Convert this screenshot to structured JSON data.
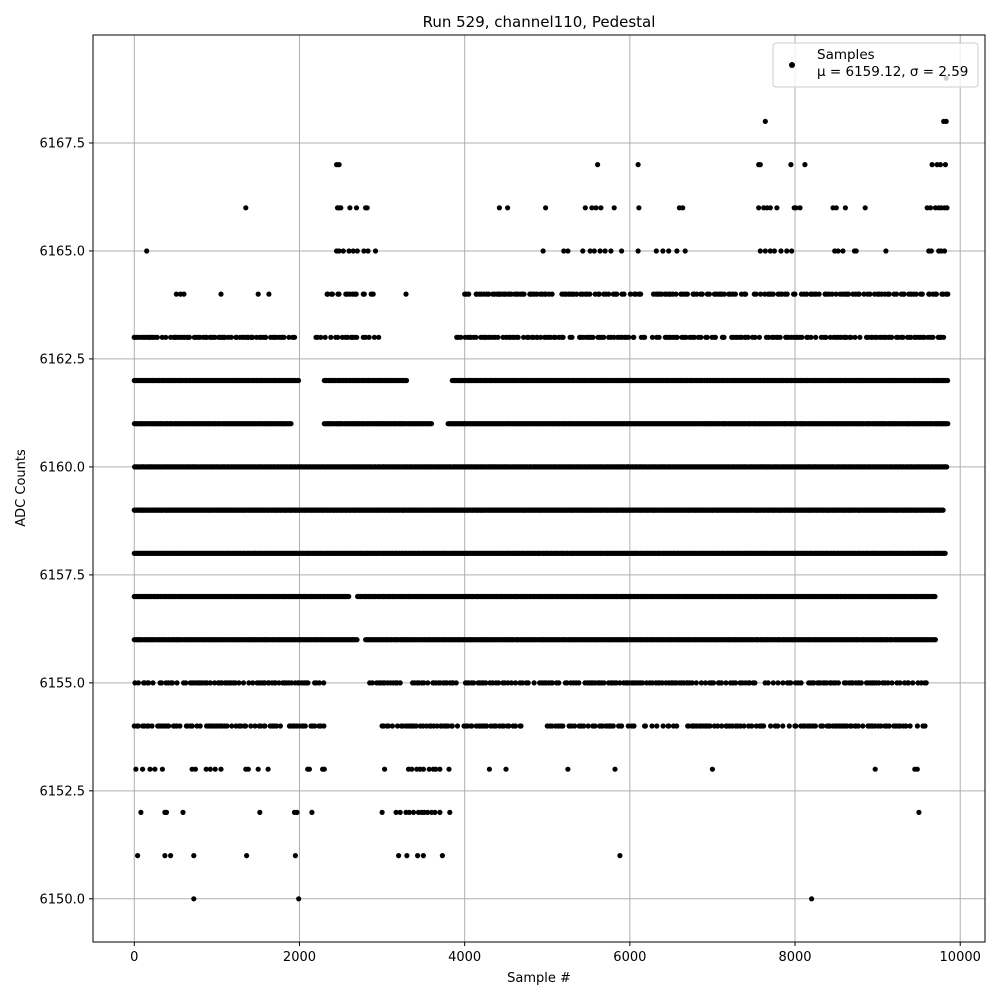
{
  "chart_data": {
    "type": "scatter",
    "title": "Run 529, channel110, Pedestal",
    "xlabel": "Sample #",
    "ylabel": "ADC Counts",
    "xlim": [
      -500,
      10300
    ],
    "ylim": [
      6149.0,
      6170.0
    ],
    "xticks": [
      0,
      2000,
      4000,
      6000,
      8000,
      10000
    ],
    "xtick_labels": [
      "0",
      "2000",
      "4000",
      "6000",
      "8000",
      "10000"
    ],
    "yticks": [
      6150.0,
      6152.5,
      6155.0,
      6157.5,
      6160.0,
      6162.5,
      6165.0,
      6167.5
    ],
    "ytick_labels": [
      "6150.0",
      "6152.5",
      "6155.0",
      "6157.5",
      "6160.0",
      "6162.5",
      "6165.0",
      "6167.5"
    ],
    "grid": true,
    "legend_position": "top-right",
    "series": [
      {
        "name": "Samples",
        "stats_label": "μ = 6159.12, σ = 2.59",
        "color": "#000000",
        "marker": "circle",
        "x_range": [
          0,
          9850
        ],
        "level_ranges": [
          {
            "y": 6160,
            "x_ranges": [
              [
                0,
                9850
              ]
            ],
            "density": "dense"
          },
          {
            "y": 6159,
            "x_ranges": [
              [
                0,
                9800
              ]
            ],
            "density": "dense"
          },
          {
            "y": 6158,
            "x_ranges": [
              [
                0,
                9820
              ]
            ],
            "density": "dense"
          },
          {
            "y": 6161,
            "x_ranges": [
              [
                0,
                1900
              ],
              [
                2300,
                3600
              ],
              [
                3800,
                9850
              ]
            ],
            "density": "dense"
          },
          {
            "y": 6157,
            "x_ranges": [
              [
                0,
                2600
              ],
              [
                2700,
                9700
              ]
            ],
            "density": "dense"
          },
          {
            "y": 6162,
            "x_ranges": [
              [
                0,
                2000
              ],
              [
                2300,
                3300
              ],
              [
                3850,
                9850
              ]
            ],
            "density": "dense"
          },
          {
            "y": 6156,
            "x_ranges": [
              [
                0,
                2700
              ],
              [
                2800,
                9700
              ]
            ],
            "density": "dense"
          },
          {
            "y": 6163,
            "x_ranges": [
              [
                0,
                2000
              ],
              [
                2200,
                3000
              ],
              [
                3900,
                9850
              ]
            ],
            "density": "medium"
          },
          {
            "y": 6155,
            "x_ranges": [
              [
                0,
                2300
              ],
              [
                2800,
                3900
              ],
              [
                4000,
                9600
              ]
            ],
            "density": "medium"
          },
          {
            "y": 6154,
            "x_ranges": [
              [
                0,
                2300
              ],
              [
                3000,
                4700
              ],
              [
                5000,
                9600
              ]
            ],
            "density": "medium"
          },
          {
            "y": 6164,
            "x_ranges": [
              [
                2300,
                2900
              ],
              [
                4000,
                9850
              ]
            ],
            "density": "medium"
          },
          {
            "y": 6153,
            "x_ranges": [],
            "density": "sparse"
          },
          {
            "y": 6165,
            "x_ranges": [],
            "density": "sparse"
          },
          {
            "y": 6152,
            "x_ranges": [],
            "density": "sparse"
          },
          {
            "y": 6166,
            "x_ranges": [],
            "density": "sparse"
          },
          {
            "y": 6151,
            "x_ranges": [],
            "density": "sparse"
          },
          {
            "y": 6167,
            "x_ranges": [],
            "density": "sparse"
          },
          {
            "y": 6168,
            "x_ranges": [],
            "density": "sparse"
          },
          {
            "y": 6150,
            "x_ranges": [],
            "density": "sparse"
          },
          {
            "y": 6169,
            "x_ranges": [],
            "density": "sparse"
          }
        ],
        "sparse_points": [
          {
            "y": 6150,
            "x": [
              720,
              1990,
              8200
            ]
          },
          {
            "y": 6151,
            "x": [
              40,
              370,
              440,
              720,
              1360,
              1950,
              3200,
              3300,
              3430,
              3500,
              3730,
              5880
            ]
          },
          {
            "y": 6152,
            "x": [
              80,
              370,
              390,
              590,
              1520,
              1940,
              1970,
              2150,
              3000,
              3170,
              3220,
              3290,
              3330,
              3380,
              3440,
              3480,
              3510,
              3550,
              3600,
              3640,
              3700,
              3820,
              9500
            ]
          },
          {
            "y": 6153,
            "x": [
              20,
              100,
              190,
              250,
              340,
              700,
              740,
              870,
              920,
              980,
              1050,
              1350,
              1380,
              1500,
              1620,
              2100,
              2120,
              2280,
              2300,
              3030,
              3320,
              3360,
              3420,
              3460,
              3500,
              3570,
              3620,
              3650,
              3700,
              3810,
              4300,
              4500,
              5250,
              5820,
              7000,
              8970,
              9450,
              9480
            ]
          },
          {
            "y": 6165,
            "x": [
              150,
              2450,
              2480,
              2530,
              2600,
              2650,
              2700,
              2780,
              2830,
              2920,
              4950,
              5200,
              5250,
              5430,
              5520,
              5570,
              5640,
              5700,
              5770,
              5900,
              6100,
              6320,
              6400,
              6470,
              6570,
              6670,
              7580,
              7640,
              7700,
              7750,
              7830,
              7900,
              7960,
              8480,
              8520,
              8580,
              8720,
              8740,
              9100,
              9620,
              9650,
              9740,
              9770,
              9810
            ]
          },
          {
            "y": 6166,
            "x": [
              1350,
              2460,
              2480,
              2500,
              2610,
              2690,
              2800,
              2820,
              4420,
              4520,
              4980,
              5460,
              5540,
              5590,
              5650,
              5810,
              6110,
              6600,
              6640,
              7560,
              7620,
              7660,
              7700,
              7780,
              7990,
              8010,
              8060,
              8460,
              8500,
              8610,
              8850,
              9600,
              9640,
              9700,
              9740,
              9770,
              9810,
              9840
            ]
          },
          {
            "y": 6167,
            "x": [
              2450,
              2480,
              5610,
              6100,
              7560,
              7580,
              7950,
              8120,
              9660,
              9720,
              9760,
              9820
            ]
          },
          {
            "y": 6168,
            "x": [
              7640,
              9800,
              9830
            ]
          },
          {
            "y": 6169,
            "x": [
              9830
            ]
          }
        ],
        "sparse_extra": [
          {
            "y": 6163,
            "x": [
              0,
              130,
              180,
              500,
              600,
              1060,
              1100,
              1230,
              1380,
              1420,
              1590,
              1650,
              1680,
              1780
            ]
          },
          {
            "y": 6164,
            "x": [
              510,
              560,
              600,
              1050,
              1500,
              1630,
              3290,
              4420,
              4490
            ]
          }
        ]
      }
    ]
  }
}
